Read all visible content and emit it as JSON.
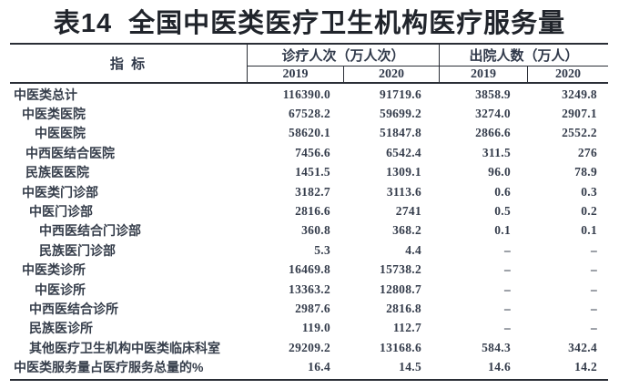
{
  "page_title": "表14  全国中医类医疗卫生机构医疗服务量",
  "table": {
    "indicator_header": "指 标",
    "column_groups": [
      {
        "label": "诊疗人次（万人次）",
        "sub_columns": [
          "2019",
          "2020"
        ]
      },
      {
        "label": "出院人数（万人）",
        "sub_columns": [
          "2019",
          "2020"
        ]
      }
    ],
    "rows": [
      {
        "label": "中医类总计",
        "indent": 0,
        "values": [
          "116390.0",
          "91719.6",
          "3858.9",
          "3249.8"
        ]
      },
      {
        "label": "中医类医院",
        "indent": 1,
        "values": [
          "67528.2",
          "59699.2",
          "3274.0",
          "2907.1"
        ]
      },
      {
        "label": "中医医院",
        "indent": 4,
        "values": [
          "58620.1",
          "51847.8",
          "2866.6",
          "2552.2"
        ]
      },
      {
        "label": "中西医结合医院",
        "indent": 2,
        "values": [
          "7456.6",
          "6542.4",
          "311.5",
          "276"
        ]
      },
      {
        "label": "民族医医院",
        "indent": 2,
        "values": [
          "1451.5",
          "1309.1",
          "96.0",
          "78.9"
        ]
      },
      {
        "label": "中医类门诊部",
        "indent": 1,
        "values": [
          "3182.7",
          "3113.6",
          "0.6",
          "0.3"
        ]
      },
      {
        "label": "中医门诊部",
        "indent": 3,
        "values": [
          "2816.6",
          "2741",
          "0.5",
          "0.2"
        ]
      },
      {
        "label": "中西医结合门诊部",
        "indent": 5,
        "values": [
          "360.8",
          "368.2",
          "0.1",
          "0.1"
        ]
      },
      {
        "label": "民族医门诊部",
        "indent": 5,
        "values": [
          "5.3",
          "4.4",
          "–",
          "–"
        ]
      },
      {
        "label": "中医类诊所",
        "indent": 1,
        "values": [
          "16469.8",
          "15738.2",
          "–",
          "–"
        ]
      },
      {
        "label": "中医诊所",
        "indent": 4,
        "values": [
          "13363.2",
          "12808.7",
          "–",
          "–"
        ]
      },
      {
        "label": "中西医结合诊所",
        "indent": 3,
        "values": [
          "2987.6",
          "2816.8",
          "–",
          "–"
        ]
      },
      {
        "label": "民族医诊所",
        "indent": 3,
        "values": [
          "119.0",
          "112.7",
          "–",
          "–"
        ]
      },
      {
        "label": "其他医疗卫生机构中医类临床科室",
        "indent": 3,
        "values": [
          "29209.2",
          "13168.6",
          "584.3",
          "342.4"
        ]
      },
      {
        "label": "中医类服务量占医疗服务总量的%",
        "indent": 0,
        "values": [
          "16.4",
          "14.5",
          "14.6",
          "14.2"
        ]
      }
    ]
  }
}
